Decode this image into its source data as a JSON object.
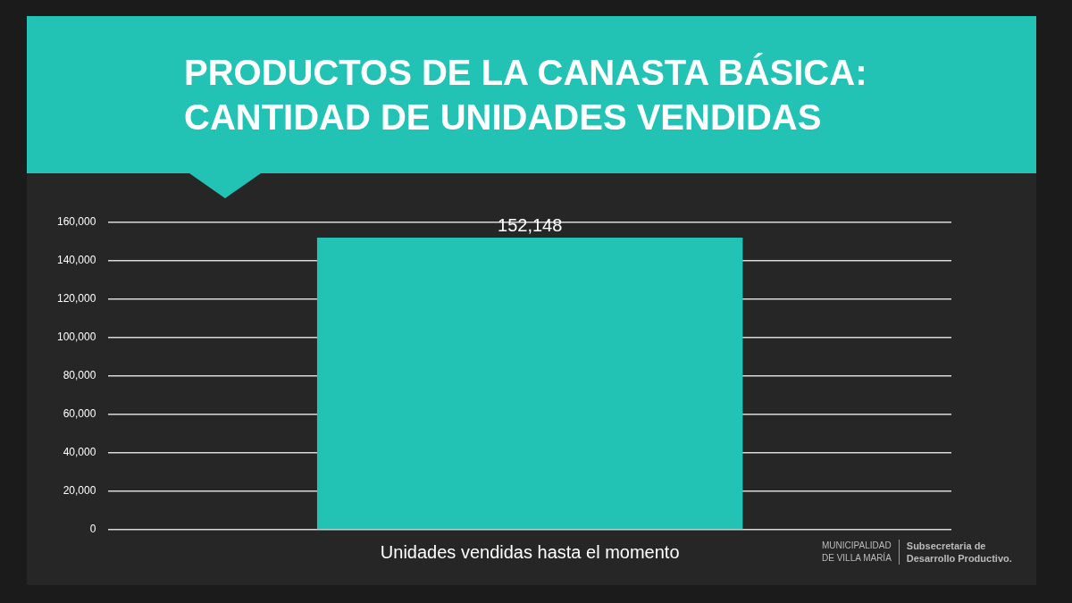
{
  "chart_data": {
    "type": "bar",
    "title": "PRODUCTOS DE LA CANASTA BÁSICA:\nCANTIDAD DE UNIDADES VENDIDAS",
    "categories": [
      "Unidades vendidas hasta el momento"
    ],
    "values": [
      152148
    ],
    "value_labels": [
      "152,148"
    ],
    "color": "#22c3b5",
    "ylim": [
      0,
      160000
    ],
    "yticks": [
      {
        "value": 0,
        "label": "0"
      },
      {
        "value": 20000,
        "label": "20,000"
      },
      {
        "value": 40000,
        "label": "40,000"
      },
      {
        "value": 60000,
        "label": "60,000"
      },
      {
        "value": 80000,
        "label": "80,000"
      },
      {
        "value": 100000,
        "label": "100,000"
      },
      {
        "value": 120000,
        "label": "120,000"
      },
      {
        "value": 140000,
        "label": "140,000"
      },
      {
        "value": 160000,
        "label": "160,000"
      }
    ],
    "grid": "y",
    "legend": false,
    "annotations": [
      "MUNICIPALIDAD\nDE VILLA MARÍA",
      "Subsecretaria de\nDesarrollo Productivo."
    ]
  }
}
